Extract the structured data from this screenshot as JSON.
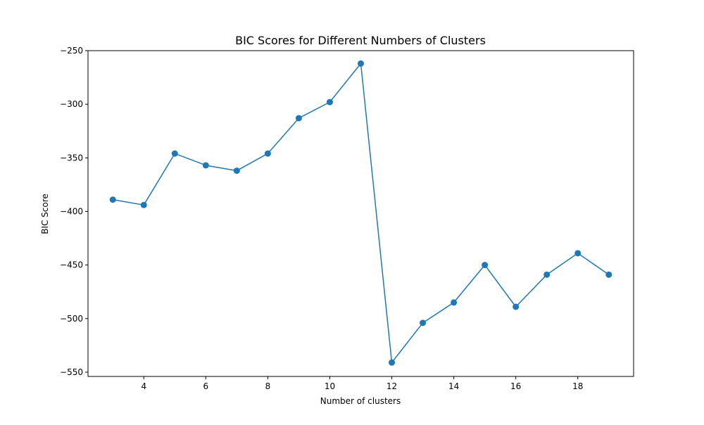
{
  "chart_data": {
    "type": "line",
    "title": "BIC Scores for Different Numbers of Clusters",
    "xlabel": "Number of clusters",
    "ylabel": "BIC Score",
    "x": [
      3,
      4,
      5,
      6,
      7,
      8,
      9,
      10,
      11,
      12,
      13,
      14,
      15,
      16,
      17,
      18,
      19
    ],
    "series": [
      {
        "values": [
          -389,
          -394,
          -346,
          -357,
          -362,
          -346,
          -313,
          -298,
          -262,
          -541,
          -504,
          -485,
          -450,
          -489,
          -459,
          -439,
          -459
        ],
        "color": "#1f77b4",
        "marker": "circle"
      }
    ],
    "xlim": [
      2.2,
      19.8
    ],
    "ylim": [
      -554,
      -250
    ],
    "xticks": [
      4,
      6,
      8,
      10,
      12,
      14,
      16,
      18
    ],
    "yticks": [
      -250,
      -300,
      -350,
      -400,
      -450,
      -500,
      -550
    ],
    "xtick_labels": [
      "4",
      "6",
      "8",
      "10",
      "12",
      "14",
      "16",
      "18"
    ],
    "ytick_labels": [
      "−250",
      "−300",
      "−350",
      "−400",
      "−450",
      "−500",
      "−550"
    ],
    "grid": false,
    "legend": "none"
  }
}
